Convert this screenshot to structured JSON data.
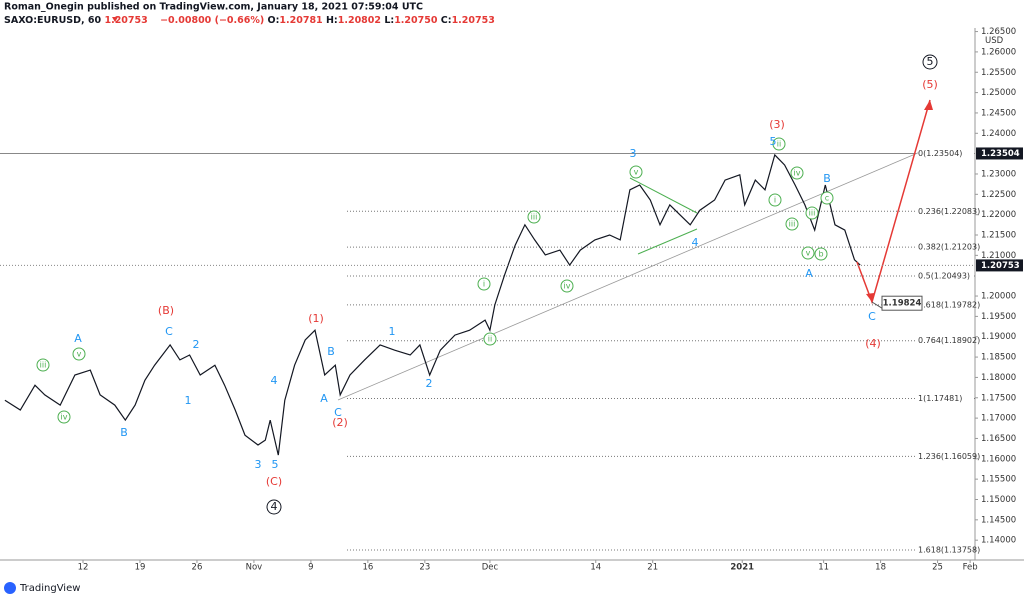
{
  "header": {
    "publisher": "Roman_Onegin published on TradingView.com, January 18, 2021 07:59:04 UTC",
    "symbol": "SAXO:EURUSD, 60",
    "price": "1.20753",
    "change": "−0.00800 (−0.66%)",
    "ohlc": [
      {
        "k": "O:",
        "v": "1.20781"
      },
      {
        "k": "H:",
        "v": "1.20802"
      },
      {
        "k": "L:",
        "v": "1.20750"
      },
      {
        "k": "C:",
        "v": "1.20753"
      }
    ]
  },
  "chart_data": {
    "type": "line",
    "color": "#131722",
    "x": [
      -9.6,
      -7.7,
      -5.9,
      -4.7,
      -2.8,
      -1.0,
      0.9,
      2.1,
      3.9,
      5.2,
      6.4,
      7.6,
      8.8,
      10.7,
      11.9,
      13.1,
      14.4,
      16.2,
      17.4,
      18.7,
      19.9,
      21.5,
      22.4,
      23.0,
      24.0,
      24.8,
      26.0,
      27.3,
      28.5,
      29.7,
      31.0,
      31.6,
      32.8,
      34.6,
      36.5,
      38.3,
      40.2,
      41.4,
      42.6,
      43.9,
      45.7,
      47.5,
      49.4,
      50.0,
      50.6,
      51.8,
      53.1,
      54.3,
      55.5,
      56.8,
      58.6,
      59.8,
      61.1,
      62.9,
      64.7,
      66.0,
      67.2,
      68.4,
      69.7,
      70.9,
      72.1,
      74.6,
      75.8,
      77.6,
      78.9,
      80.7,
      81.3,
      82.6,
      83.8,
      85.0,
      86.2,
      87.5,
      88.7,
      89.9,
      91.2,
      92.4,
      93.6,
      94.8,
      95.5
    ],
    "values": [
      1.1744,
      1.172,
      1.1781,
      1.1757,
      1.1732,
      1.1806,
      1.1818,
      1.1757,
      1.1732,
      1.1695,
      1.1732,
      1.1793,
      1.183,
      1.188,
      1.1843,
      1.1855,
      1.1806,
      1.183,
      1.1781,
      1.172,
      1.1658,
      1.1634,
      1.1646,
      1.1695,
      1.1609,
      1.1744,
      1.183,
      1.1892,
      1.1916,
      1.1806,
      1.183,
      1.1757,
      1.1806,
      1.1843,
      1.188,
      1.1867,
      1.1855,
      1.188,
      1.1806,
      1.1867,
      1.1904,
      1.1916,
      1.1941,
      1.1916,
      1.1978,
      1.2052,
      1.2125,
      1.2175,
      1.2138,
      1.2101,
      1.2113,
      1.2076,
      1.2113,
      1.2138,
      1.215,
      1.2138,
      1.2261,
      1.2273,
      1.2236,
      1.2175,
      1.2224,
      1.2175,
      1.2211,
      1.2236,
      1.2285,
      1.2298,
      1.2224,
      1.2285,
      1.2261,
      1.2347,
      1.2322,
      1.2273,
      1.2224,
      1.2162,
      1.2273,
      1.2175,
      1.2162,
      1.2089,
      1.2076
    ],
    "xlim": [
      -10.2,
      109.6
    ],
    "ylim": [
      1.1339,
      1.2703
    ],
    "xticks": [
      {
        "value": 0,
        "label": "12"
      },
      {
        "value": 7,
        "label": "19"
      },
      {
        "value": 14,
        "label": "26"
      },
      {
        "value": 21,
        "label": "Nov"
      },
      {
        "value": 28,
        "label": "9"
      },
      {
        "value": 35,
        "label": "16"
      },
      {
        "value": 42,
        "label": "23"
      },
      {
        "value": 50,
        "label": "Dec"
      },
      {
        "value": 63,
        "label": "14"
      },
      {
        "value": 70,
        "label": "21"
      },
      {
        "value": 81,
        "label": "2021"
      },
      {
        "value": 91,
        "label": "11"
      },
      {
        "value": 98,
        "label": "18"
      },
      {
        "value": 105,
        "label": "25"
      },
      {
        "value": 109,
        "label": "Feb"
      }
    ],
    "yticks": [
      {
        "value": 1.14,
        "label": "1.14000"
      },
      {
        "value": 1.145,
        "label": "1.14500"
      },
      {
        "value": 1.15,
        "label": "1.15000"
      },
      {
        "value": 1.155,
        "label": "1.15500"
      },
      {
        "value": 1.16,
        "label": "1.16000"
      },
      {
        "value": 1.165,
        "label": "1.16500"
      },
      {
        "value": 1.17,
        "label": "1.17000"
      },
      {
        "value": 1.175,
        "label": "1.17500"
      },
      {
        "value": 1.18,
        "label": "1.18000"
      },
      {
        "value": 1.185,
        "label": "1.18500"
      },
      {
        "value": 1.19,
        "label": "1.19000"
      },
      {
        "value": 1.195,
        "label": "1.19500"
      },
      {
        "value": 1.2,
        "label": "1.20000"
      },
      {
        "value": 1.21,
        "label": "1.21000"
      },
      {
        "value": 1.215,
        "label": "1.21500"
      },
      {
        "value": 1.22,
        "label": "1.22000"
      },
      {
        "value": 1.225,
        "label": "1.22500"
      },
      {
        "value": 1.23,
        "label": "1.23000"
      },
      {
        "value": 1.24,
        "label": "1.24000"
      },
      {
        "value": 1.245,
        "label": "1.24500"
      },
      {
        "value": 1.25,
        "label": "1.25000"
      },
      {
        "value": 1.255,
        "label": "1.25500"
      },
      {
        "value": 1.26,
        "label": "1.26000"
      },
      {
        "value": 1.265,
        "label": "1.26500"
      }
    ],
    "y_unit": "USD",
    "price_labels": [
      {
        "value": 1.23504,
        "label": "1.23504"
      },
      {
        "value": 1.20753,
        "label": "1.20753"
      }
    ],
    "target": {
      "value": 1.19824,
      "label": "1.19824"
    },
    "fib_levels": [
      {
        "value": 1.23504,
        "label": "0(1.23504)"
      },
      {
        "value": 1.22083,
        "label": "0.236(1.22083)"
      },
      {
        "value": 1.21203,
        "label": "0.382(1.21203)"
      },
      {
        "value": 1.20493,
        "label": "0.5(1.20493)"
      },
      {
        "value": 1.19782,
        "label": "0.618(1.19782)"
      },
      {
        "value": 1.18902,
        "label": "0.764(1.18902)"
      },
      {
        "value": 1.17481,
        "label": "1(1.17481)"
      },
      {
        "value": 1.16059,
        "label": "1.236(1.16059)"
      },
      {
        "value": 1.13758,
        "label": "1.618(1.13758)"
      }
    ],
    "annotations": [
      "iii",
      "v",
      "iv",
      "iii",
      "i",
      "iv",
      "ii",
      "v",
      "ii",
      "iv",
      "i",
      "iii",
      "iii",
      "c",
      "v",
      "b",
      "A",
      "B",
      "C",
      "2",
      "1",
      "3",
      "4",
      "5",
      "B",
      "A",
      "C",
      "1",
      "2",
      "3",
      "4",
      "5",
      "B",
      "A",
      "C",
      "(B)",
      "(1)",
      "(2)",
      "(C)",
      "(3)",
      "(5)",
      "(4)",
      "4",
      "5"
    ]
  },
  "footer": {
    "brand": "TradingView"
  }
}
